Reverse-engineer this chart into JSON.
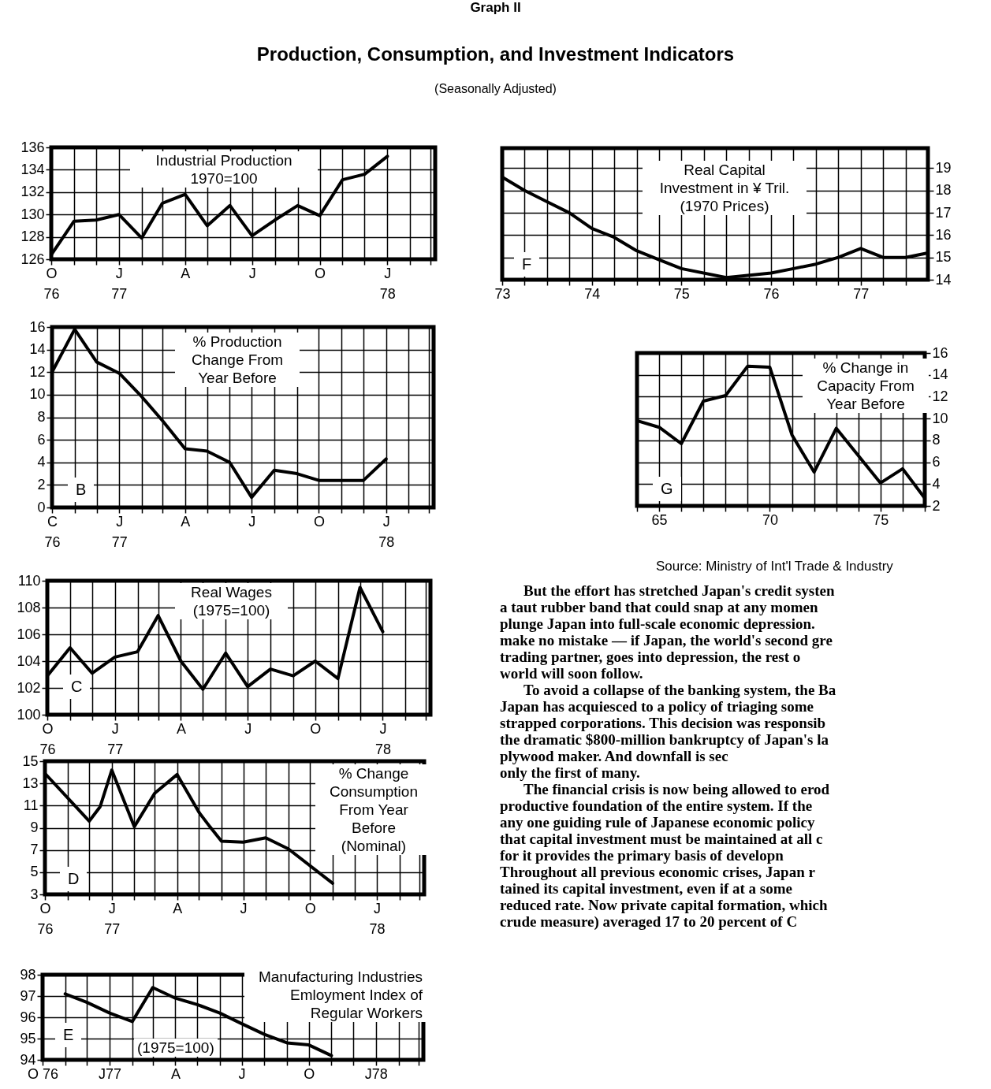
{
  "chart_data": [
    {
      "type": "line",
      "title": "Industrial Production\n1970=100",
      "x": [
        "1976-10",
        "1976-11",
        "1976-12",
        "1977-01",
        "1977-02",
        "1977-03",
        "1977-04",
        "1977-05",
        "1977-06",
        "1977-07",
        "1977-08",
        "1977-09",
        "1977-10",
        "1977-11",
        "1977-12",
        "1978-01"
      ],
      "values": [
        126.4,
        129.4,
        129.5,
        130,
        127.9,
        131,
        131.8,
        129,
        130.8,
        128.1,
        129.5,
        130.8,
        129.9,
        133.1,
        133.6,
        135.2
      ],
      "color": "#000000",
      "xlim": [
        "1976-10",
        "1978-03-07"
      ],
      "xticks": [
        {
          "value": "1976-10",
          "label": "O\n76"
        },
        {
          "value": "1976-11",
          "label": null
        },
        {
          "value": "1976-12",
          "label": null
        },
        {
          "value": "1977-01",
          "label": "J\n77"
        },
        {
          "value": "1977-02",
          "label": null
        },
        {
          "value": "1977-03",
          "label": null
        },
        {
          "value": "1977-04",
          "label": "A"
        },
        {
          "value": "1977-05",
          "label": null
        },
        {
          "value": "1977-06",
          "label": null
        },
        {
          "value": "1977-07",
          "label": "J"
        },
        {
          "value": "1977-08",
          "label": null
        },
        {
          "value": "1977-09",
          "label": null
        },
        {
          "value": "1977-10",
          "label": "O"
        },
        {
          "value": "1977-11",
          "label": null
        },
        {
          "value": "1977-12",
          "label": null
        },
        {
          "value": "1978-01",
          "label": "J\n78"
        },
        {
          "value": "1978-02",
          "label": null
        },
        {
          "value": "1978-03",
          "label": null
        }
      ],
      "ylim": [
        126,
        136
      ],
      "yticks": [
        126,
        128,
        130,
        132,
        134,
        136
      ],
      "grid": true
    },
    {
      "type": "line",
      "title": "% Production\nChange From\nYear Before",
      "annotations": [
        "B"
      ],
      "x": [
        "1976-10",
        "1976-11",
        "1976-12",
        "1977-01",
        "1977-02",
        "1977-03",
        "1977-04",
        "1977-05",
        "1977-06",
        "1977-07",
        "1977-08",
        "1977-09",
        "1977-10",
        "1977-11",
        "1977-12",
        "1978-01"
      ],
      "values": [
        12,
        15.8,
        12.9,
        11.9,
        9.8,
        7.7,
        5.2,
        5,
        4,
        0.9,
        3.3,
        3,
        2.4,
        2.4,
        2.4,
        4.3
      ],
      "color": "#000000",
      "xlim": [
        "1976-10",
        "1978-03-07"
      ],
      "xticks": [
        {
          "value": "1976-10",
          "label": "C\n76"
        },
        {
          "value": "1976-11",
          "label": null
        },
        {
          "value": "1976-12",
          "label": null
        },
        {
          "value": "1977-01",
          "label": "J\n77"
        },
        {
          "value": "1977-02",
          "label": null
        },
        {
          "value": "1977-03",
          "label": null
        },
        {
          "value": "1977-04",
          "label": "A"
        },
        {
          "value": "1977-05",
          "label": null
        },
        {
          "value": "1977-06",
          "label": null
        },
        {
          "value": "1977-07",
          "label": "J"
        },
        {
          "value": "1977-08",
          "label": null
        },
        {
          "value": "1977-09",
          "label": null
        },
        {
          "value": "1977-10",
          "label": "O"
        },
        {
          "value": "1977-11",
          "label": null
        },
        {
          "value": "1977-12",
          "label": null
        },
        {
          "value": "1978-01",
          "label": "J\n78"
        },
        {
          "value": "1978-02",
          "label": null
        },
        {
          "value": "1978-03",
          "label": null
        }
      ],
      "ylim": [
        0,
        16
      ],
      "yticks": [
        0,
        2,
        4,
        6,
        8,
        10,
        12,
        14,
        16
      ],
      "grid": true
    },
    {
      "type": "line",
      "title": "Real Wages\n(1975=100)",
      "annotations": [
        "C"
      ],
      "x": [
        "1976-10",
        "1976-11",
        "1976-12",
        "1977-01",
        "1977-02",
        "1977-03",
        "1977-04",
        "1977-05",
        "1977-06",
        "1977-07",
        "1977-08",
        "1977-09",
        "1977-10",
        "1977-11",
        "1977-12",
        "1978-01"
      ],
      "values": [
        102.9,
        105,
        103.1,
        104.3,
        104.7,
        107.4,
        104,
        101.9,
        104.6,
        102.1,
        103.4,
        102.9,
        104,
        102.7,
        109.5,
        106.2
      ],
      "color": "#000000",
      "xlim": [
        "1976-10",
        "1978-03-07"
      ],
      "xticks": [
        {
          "value": "1976-10",
          "label": "O\n76"
        },
        {
          "value": "1976-11",
          "label": null
        },
        {
          "value": "1976-12",
          "label": null
        },
        {
          "value": "1977-01",
          "label": "J\n77"
        },
        {
          "value": "1977-02",
          "label": null
        },
        {
          "value": "1977-03",
          "label": null
        },
        {
          "value": "1977-04",
          "label": "A"
        },
        {
          "value": "1977-05",
          "label": null
        },
        {
          "value": "1977-06",
          "label": null
        },
        {
          "value": "1977-07",
          "label": "J"
        },
        {
          "value": "1977-08",
          "label": null
        },
        {
          "value": "1977-09",
          "label": null
        },
        {
          "value": "1977-10",
          "label": "O"
        },
        {
          "value": "1977-11",
          "label": null
        },
        {
          "value": "1977-12",
          "label": null
        },
        {
          "value": "1978-01",
          "label": "J\n78"
        },
        {
          "value": "1978-02",
          "label": null
        },
        {
          "value": "1978-03",
          "label": null
        }
      ],
      "ylim": [
        100,
        110
      ],
      "yticks": [
        100,
        102,
        104,
        106,
        108,
        110
      ],
      "grid": true
    },
    {
      "type": "line",
      "title": "% Change\nConsumption\nFrom Year\nBefore\n(Nominal)",
      "annotations": [
        "D"
      ],
      "x": [
        "1976-10",
        "1976-12",
        "1976-12-16",
        "1977-01",
        "1977-02",
        "1977-03",
        "1977-04",
        "1977-05",
        "1977-05-16",
        "1977-06",
        "1977-07",
        "1977-08",
        "1977-09",
        "1977-11"
      ],
      "values": [
        13.9,
        9.6,
        10.9,
        14.2,
        9.1,
        12.1,
        13.8,
        10.4,
        9.1,
        7.8,
        7.7,
        8.1,
        7.1,
        4
      ],
      "color": "#000000",
      "xlim": [
        "1976-10",
        "1978-03-07"
      ],
      "xticks": [
        {
          "value": "1976-10",
          "label": "O\n76"
        },
        {
          "value": "1976-11",
          "label": null
        },
        {
          "value": "1976-12",
          "label": null
        },
        {
          "value": "1977-01",
          "label": "J\n77"
        },
        {
          "value": "1977-02",
          "label": null
        },
        {
          "value": "1977-03",
          "label": null
        },
        {
          "value": "1977-04",
          "label": "A"
        },
        {
          "value": "1977-05",
          "label": null
        },
        {
          "value": "1977-06",
          "label": null
        },
        {
          "value": "1977-07",
          "label": "J"
        },
        {
          "value": "1977-08",
          "label": null
        },
        {
          "value": "1977-09",
          "label": null
        },
        {
          "value": "1977-10",
          "label": "O"
        },
        {
          "value": "1977-11",
          "label": null
        },
        {
          "value": "1977-12",
          "label": null
        },
        {
          "value": "1978-01",
          "label": "J\n78"
        },
        {
          "value": "1978-02",
          "label": null
        },
        {
          "value": "1978-03",
          "label": null
        }
      ],
      "ylim": [
        3,
        15
      ],
      "yticks": [
        3,
        5,
        7,
        9,
        11,
        13,
        15
      ],
      "grid": true
    },
    {
      "type": "line",
      "title": "Manufacturing Industries\nEmloyment Index of\nRegular Workers",
      "subtitle": "(1975=100)",
      "annotations": [
        "E"
      ],
      "x": [
        "1976-11",
        "1976-12",
        "1977-01",
        "1977-02",
        "1977-03",
        "1977-04",
        "1977-05",
        "1977-06",
        "1977-07",
        "1977-08",
        "1977-09",
        "1977-10",
        "1977-11"
      ],
      "values": [
        97.1,
        96.7,
        96.2,
        95.8,
        97.4,
        96.9,
        96.6,
        96.2,
        95.7,
        95.2,
        94.8,
        94.7,
        94.2
      ],
      "color": "#000000",
      "xlim": [
        "1976-10",
        "1978-03-07"
      ],
      "xticks": [
        {
          "value": "1976-10",
          "label": "O 76"
        },
        {
          "value": "1976-11",
          "label": null
        },
        {
          "value": "1976-12",
          "label": null
        },
        {
          "value": "1977-01",
          "label": "J77"
        },
        {
          "value": "1977-02",
          "label": null
        },
        {
          "value": "1977-03",
          "label": null
        },
        {
          "value": "1977-04",
          "label": "A"
        },
        {
          "value": "1977-05",
          "label": null
        },
        {
          "value": "1977-06",
          "label": null
        },
        {
          "value": "1977-07",
          "label": "J"
        },
        {
          "value": "1977-08",
          "label": null
        },
        {
          "value": "1977-09",
          "label": null
        },
        {
          "value": "1977-10",
          "label": "O"
        },
        {
          "value": "1977-11",
          "label": null
        },
        {
          "value": "1977-12",
          "label": null
        },
        {
          "value": "1978-01",
          "label": "J78"
        },
        {
          "value": "1978-02",
          "label": null
        },
        {
          "value": "1978-03",
          "label": null
        }
      ],
      "ylim": [
        94,
        98
      ],
      "yticks": [
        94,
        95,
        96,
        97,
        98
      ],
      "grid": true
    },
    {
      "type": "line",
      "title": "Real Capital\nInvestment in ¥ Tril.\n(1970 Prices)",
      "annotations": [
        "F"
      ],
      "x": [
        73,
        73.25,
        73.5,
        73.75,
        74,
        74.25,
        74.5,
        74.75,
        75,
        75.5,
        76,
        76.25,
        76.5,
        76.75,
        77,
        77.25,
        77.5,
        77.75
      ],
      "values": [
        18.6,
        18,
        17.5,
        17,
        16.3,
        15.9,
        15.3,
        14.9,
        14.5,
        14.1,
        14.3,
        14.5,
        14.7,
        15,
        15.4,
        15,
        15,
        15.2
      ],
      "color": "#000000",
      "xlim": [
        73,
        77.75
      ],
      "xticks": [
        73,
        {
          "value": 73.25,
          "label": null
        },
        {
          "value": 73.5,
          "label": null
        },
        {
          "value": 73.75,
          "label": null
        },
        74,
        {
          "value": 74.25,
          "label": null
        },
        {
          "value": 74.5,
          "label": null
        },
        {
          "value": 74.75,
          "label": null
        },
        75,
        {
          "value": 75.25,
          "label": null
        },
        {
          "value": 75.5,
          "label": null
        },
        {
          "value": 75.75,
          "label": null
        },
        76,
        {
          "value": 76.25,
          "label": null
        },
        {
          "value": 76.5,
          "label": null
        },
        {
          "value": 76.75,
          "label": null
        },
        77,
        {
          "value": 77.25,
          "label": null
        },
        {
          "value": 77.5,
          "label": null
        }
      ],
      "ylim": [
        14,
        19.9
      ],
      "yticks": [
        14,
        15,
        16,
        17,
        18,
        19
      ],
      "grid": true
    },
    {
      "type": "line",
      "title": "% Change in\nCapacity From\nYear Before",
      "annotations": [
        "G",
        "Source:  Ministry of Int'l Trade & Industry"
      ],
      "x": [
        64,
        65,
        66,
        67,
        68,
        69,
        70,
        71,
        72,
        73,
        74,
        75,
        76,
        77
      ],
      "values": [
        9.8,
        9.2,
        7.7,
        11.6,
        12.1,
        14.8,
        14.7,
        8.5,
        5.1,
        9.1,
        6.6,
        4.1,
        5.4,
        2.7
      ],
      "color": "#000000",
      "xlim": [
        64,
        77
      ],
      "xticks": [
        {
          "value": 64,
          "label": null
        },
        65,
        {
          "value": 66,
          "label": null
        },
        {
          "value": 67,
          "label": null
        },
        {
          "value": 68,
          "label": null
        },
        {
          "value": 69,
          "label": null
        },
        70,
        {
          "value": 71,
          "label": null
        },
        {
          "value": 72,
          "label": null
        },
        {
          "value": 73,
          "label": null
        },
        {
          "value": 74,
          "label": null
        },
        75,
        {
          "value": 76,
          "label": null
        },
        {
          "value": 77,
          "label": null
        }
      ],
      "ylim": [
        2,
        16
      ],
      "yticks": [
        2,
        4,
        6,
        8,
        10,
        12,
        14,
        16
      ],
      "grid": true
    },
    {
      "type": "other",
      "title": "Production, Consumption, and Investment Indicators",
      "subtitle": "(Seasonally Adjusted)",
      "annotations": [
        "Graph II",
        "But the effort has stretched Japan's credit systen\na taut rubber band that could snap at any momen\nplunge Japan into full-scale economic depression.\nmake no mistake — if Japan, the world's second gre\ntrading partner, goes into depression, the rest o\nworld will soon follow.",
        "To avoid a collapse of the banking system, the Ba\nJapan has acquiesced to a policy of triaging some\nstrapped corporations. This decision was responsib\nthe dramatic $800-million bankruptcy of Japan's la\nplywood maker. And downfall is sec\nonly the first of many.",
        "The financial crisis is now being allowed to erod\nproductive foundation of the entire system. If the\nany one guiding rule of Japanese economic policy\nthat capital investment must be maintained at all c\nfor it provides the primary basis of developn\nThroughout all previous economic crises, Japan r\ntained its capital investment, even if at a some\nreduced rate. Now private capital formation, which\ncrude measure) averaged 17 to 20 percent of C"
      ]
    }
  ]
}
